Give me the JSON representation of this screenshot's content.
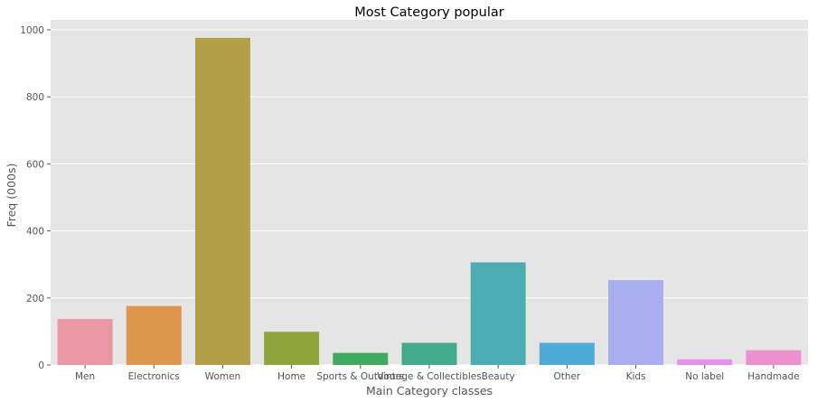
{
  "chart_data": {
    "type": "bar",
    "title": "Most Category popular",
    "xlabel": "Main Category classes",
    "ylabel": "Freq (000s)",
    "categories": [
      "Men",
      "Electronics",
      "Women",
      "Home",
      "Sports & Outdoors",
      "Vintage & Collectibles",
      "Beauty",
      "Other",
      "Kids",
      "No label",
      "Handmade"
    ],
    "values": [
      137,
      176,
      976,
      99,
      36,
      66,
      306,
      66,
      253,
      17,
      44
    ],
    "colors": [
      "#ea96a3",
      "#e0954f",
      "#b39f47",
      "#8fa43c",
      "#40aa5e",
      "#44a88a",
      "#4bacb1",
      "#4eaad6",
      "#a8aeee",
      "#e68ff0",
      "#ec91d0"
    ],
    "yticks": [
      0,
      200,
      400,
      600,
      800,
      1000
    ],
    "ylim": [
      0,
      1025
    ],
    "grid": true,
    "legend": "none",
    "background": "#e5e5e5"
  }
}
